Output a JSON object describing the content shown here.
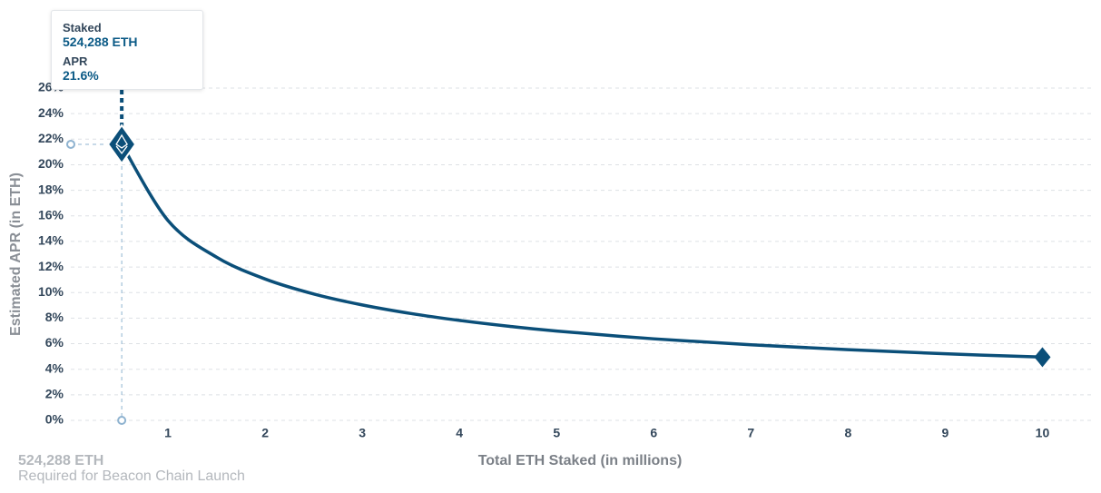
{
  "chart_data": {
    "type": "line",
    "x_label": "Total ETH Staked  (in millions)",
    "y_label": "Estimated APR (in ETH)",
    "x": [
      0.524288,
      1,
      1.5,
      2,
      2.5,
      3,
      3.5,
      4,
      4.5,
      5,
      6,
      7,
      8,
      9,
      10
    ],
    "series": [
      {
        "name": "Estimated APR",
        "color": "#0b4f79",
        "values": [
          21.6,
          15.64,
          12.77,
          11.06,
          9.89,
          9.03,
          8.36,
          7.82,
          7.37,
          6.99,
          6.38,
          5.91,
          5.53,
          5.21,
          4.95
        ]
      }
    ],
    "xlim": [
      0,
      10.5
    ],
    "xticks": [
      1,
      2,
      3,
      4,
      5,
      6,
      7,
      8,
      9,
      10
    ],
    "ylim": [
      0,
      26
    ],
    "yticks": [
      {
        "value": 0,
        "label": "0%"
      },
      {
        "value": 2,
        "label": "2%"
      },
      {
        "value": 4,
        "label": "4%"
      },
      {
        "value": 6,
        "label": "6%"
      },
      {
        "value": 8,
        "label": "8%"
      },
      {
        "value": 10,
        "label": "10%"
      },
      {
        "value": 12,
        "label": "12%"
      },
      {
        "value": 14,
        "label": "14%"
      },
      {
        "value": 16,
        "label": "16%"
      },
      {
        "value": 18,
        "label": "18%"
      },
      {
        "value": 20,
        "label": "20%"
      },
      {
        "value": 22,
        "label": "22%"
      },
      {
        "value": 24,
        "label": "24%"
      },
      {
        "value": 26,
        "label": "26%"
      }
    ],
    "grid": true,
    "tooltip": [
      {
        "label": "Staked",
        "value": "524,288 ETH"
      },
      {
        "label": "APR",
        "value": "21.6%"
      }
    ],
    "annotation": {
      "value": "524,288 ETH",
      "text": "Required for Beacon Chain Launch"
    }
  }
}
